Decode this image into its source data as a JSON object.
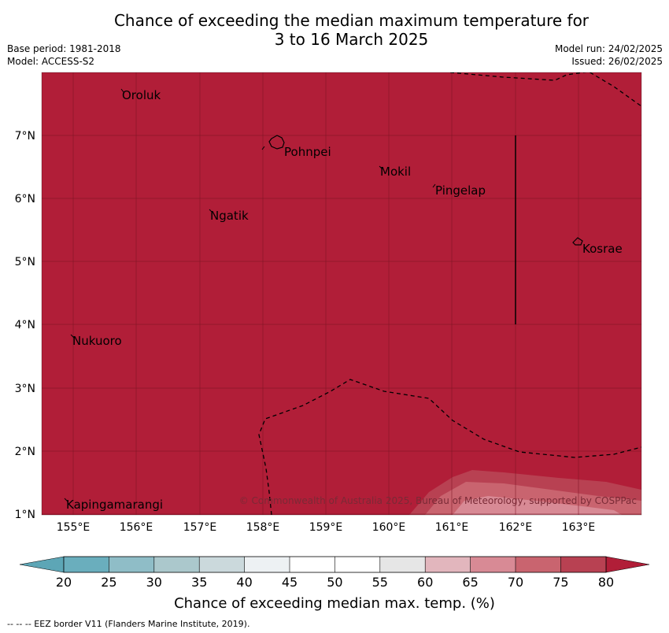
{
  "header": {
    "title_line1": "Chance of exceeding the median maximum temperature for",
    "title_line2": "3 to 16 March 2025",
    "base_period": "Base period: 1981-2018",
    "model": "Model: ACCESS-S2",
    "model_run": "Model run: 24/02/2025",
    "issued": "Issued: 26/02/2025"
  },
  "map": {
    "fill_color": "#b11e38",
    "lon_labels": [
      "155°E",
      "156°E",
      "157°E",
      "158°E",
      "159°E",
      "160°E",
      "161°E",
      "162°E",
      "163°E"
    ],
    "lat_labels": [
      "7°N",
      "6°N",
      "5°N",
      "4°N",
      "3°N",
      "2°N",
      "1°N"
    ],
    "places": [
      "Oroluk",
      "Pohnpei",
      "Mokil",
      "Pingelap",
      "Ngatik",
      "Kosrae",
      "Nukuoro",
      "Kapingamarangi"
    ],
    "copyright": "© Commonwealth of Australia 2025, Bureau of Meteorology, supported by COSPPac"
  },
  "colorbar": {
    "ticks": [
      "20",
      "25",
      "30",
      "35",
      "40",
      "45",
      "50",
      "55",
      "60",
      "65",
      "70",
      "75",
      "80"
    ],
    "colors": [
      "#6aaebd",
      "#8fbdc7",
      "#abc8cc",
      "#cbd9dc",
      "#edf1f3",
      "#ffffff",
      "#ffffff",
      "#e6e6e6",
      "#e2b6bd",
      "#d88a95",
      "#c9646f",
      "#b84152",
      "#b11e38"
    ],
    "low_color": "#5da6b6",
    "high_color": "#b11e38",
    "label": "Chance of exceeding median max. temp. (%)"
  },
  "footer": {
    "eez_legend": "--  --  -- EEZ border V11 (Flanders Marine Institute, 2019)."
  }
}
